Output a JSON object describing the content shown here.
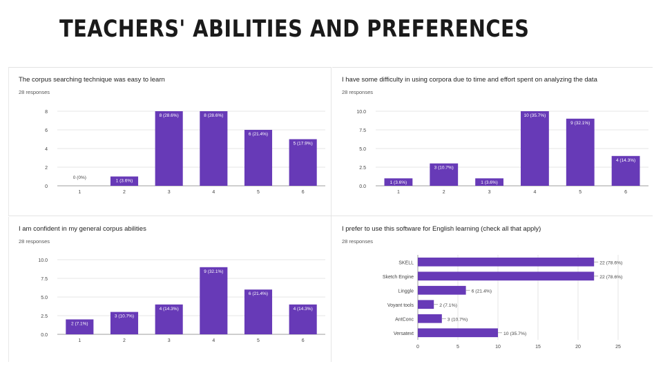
{
  "slide": {
    "title": "Teachers' abilities and preferences"
  },
  "colors": {
    "bar": "#673ab7",
    "grid": "#e6e6e6",
    "axis": "#666666",
    "text": "#444444",
    "background": "#ffffff"
  },
  "chart_data": [
    {
      "type": "bar",
      "title": "The corpus searching technique was easy to learn",
      "subtitle": "28 responses",
      "categories": [
        "1",
        "2",
        "3",
        "4",
        "5",
        "6"
      ],
      "values": [
        0,
        1,
        8,
        8,
        6,
        5
      ],
      "data_labels": [
        "0 (0%)",
        "1 (3.6%)",
        "8 (28.6%)",
        "8 (28.6%)",
        "6 (21.4%)",
        "5 (17.9%)"
      ],
      "yticks": [
        "0",
        "2",
        "4",
        "6",
        "8"
      ],
      "ylim": [
        0,
        8
      ],
      "grid": true
    },
    {
      "type": "bar",
      "title": "I have some difficulty in using corpora due to time and effort spent on analyzing the data",
      "subtitle": "28 responses",
      "categories": [
        "1",
        "2",
        "3",
        "4",
        "5",
        "6"
      ],
      "values": [
        1,
        3,
        1,
        10,
        9,
        4
      ],
      "data_labels": [
        "1 (3.6%)",
        "3 (10.7%)",
        "1 (3.6%)",
        "10 (35.7%)",
        "9 (32.1%)",
        "4 (14.3%)"
      ],
      "yticks": [
        "0.0",
        "2.5",
        "5.0",
        "7.5",
        "10.0"
      ],
      "ylim": [
        0,
        10
      ],
      "grid": true
    },
    {
      "type": "bar",
      "title": "I am confident in my general corpus abilities",
      "subtitle": "28 responses",
      "categories": [
        "1",
        "2",
        "3",
        "4",
        "5",
        "6"
      ],
      "values": [
        2,
        3,
        4,
        9,
        6,
        4
      ],
      "data_labels": [
        "2 (7.1%)",
        "3 (10.7%)",
        "4 (14.3%)",
        "9 (32.1%)",
        "6 (21.4%)",
        "4 (14.3%)"
      ],
      "yticks": [
        "0.0",
        "2.5",
        "5.0",
        "7.5",
        "10.0"
      ],
      "ylim": [
        0,
        10
      ],
      "grid": true
    },
    {
      "type": "bar",
      "orientation": "horizontal",
      "title": "I prefer to use this software for English learning (check all that apply)",
      "subtitle": "28 responses",
      "categories": [
        "SKELL",
        "Sketch Engine",
        "Linggle",
        "Voyant tools",
        "AntConc",
        "Versatext"
      ],
      "values": [
        22,
        22,
        6,
        2,
        3,
        10
      ],
      "data_labels": [
        "22 (78.6%)",
        "22 (78.6%)",
        "6 (21.4%)",
        "2 (7.1%)",
        "3 (10.7%)",
        "10 (35.7%)"
      ],
      "xticks": [
        "0",
        "5",
        "10",
        "15",
        "20",
        "25"
      ],
      "xlim": [
        0,
        25
      ],
      "grid": true
    }
  ]
}
